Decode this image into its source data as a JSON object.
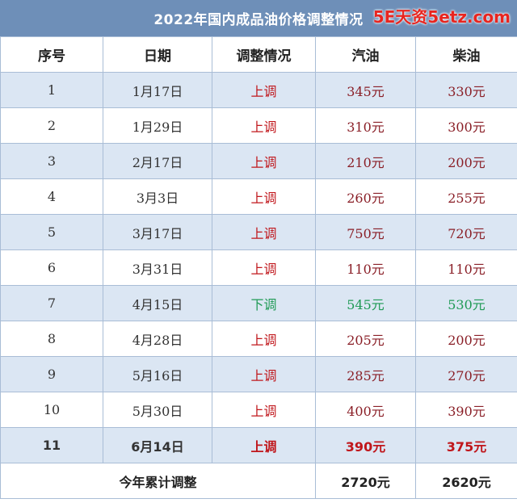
{
  "title": "2022年国内成品油价格调整情况",
  "watermark": "5E天资5etz.com",
  "headers": [
    "序号",
    "日期",
    "调整情况",
    "汽油",
    "柴油"
  ],
  "rows": [
    {
      "no": "1",
      "date": "1月17日",
      "dir": "上调",
      "gas": "345元",
      "diesel": "330元"
    },
    {
      "no": "2",
      "date": "1月29日",
      "dir": "上调",
      "gas": "310元",
      "diesel": "300元"
    },
    {
      "no": "3",
      "date": "2月17日",
      "dir": "上调",
      "gas": "210元",
      "diesel": "200元"
    },
    {
      "no": "4",
      "date": "3月3日",
      "dir": "上调",
      "gas": "260元",
      "diesel": "255元"
    },
    {
      "no": "5",
      "date": "3月17日",
      "dir": "上调",
      "gas": "750元",
      "diesel": "720元"
    },
    {
      "no": "6",
      "date": "3月31日",
      "dir": "上调",
      "gas": "110元",
      "diesel": "110元"
    },
    {
      "no": "7",
      "date": "4月15日",
      "dir": "下调",
      "gas": "545元",
      "diesel": "530元"
    },
    {
      "no": "8",
      "date": "4月28日",
      "dir": "上调",
      "gas": "205元",
      "diesel": "200元"
    },
    {
      "no": "9",
      "date": "5月16日",
      "dir": "上调",
      "gas": "285元",
      "diesel": "270元"
    },
    {
      "no": "10",
      "date": "5月30日",
      "dir": "上调",
      "gas": "400元",
      "diesel": "390元"
    },
    {
      "no": "11",
      "date": "6月14日",
      "dir": "上调",
      "gas": "390元",
      "diesel": "375元"
    }
  ],
  "total": {
    "label": "今年累计调整",
    "gas": "2720元",
    "diesel": "2620元"
  },
  "colors": {
    "title_bg": "#6e8fb8",
    "row_alt": "#dbe6f3",
    "up": "#c0161b",
    "down": "#1f9a55",
    "border": "#a9bdd6"
  }
}
